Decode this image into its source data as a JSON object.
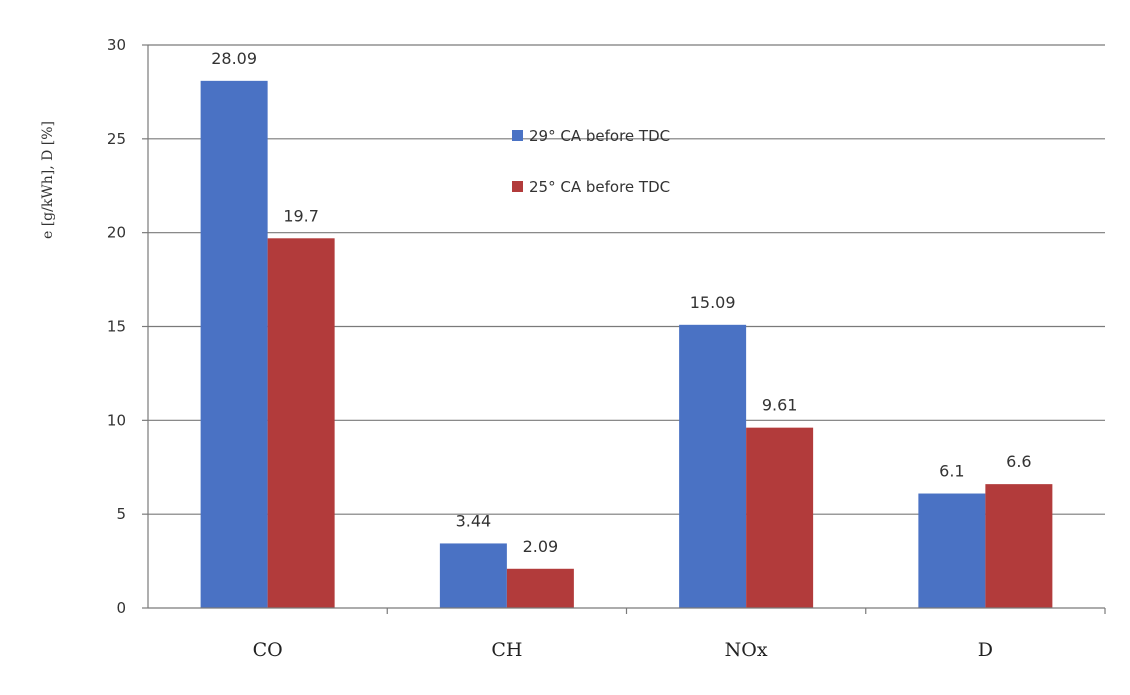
{
  "chart_data": {
    "type": "bar",
    "categories": [
      "CO",
      "CH",
      "NOx",
      "D"
    ],
    "series": [
      {
        "name": "29° CA before TDC",
        "values": [
          28.09,
          3.44,
          15.09,
          6.1
        ],
        "labels": [
          "28.09",
          "3.44",
          "15.09",
          "6.1"
        ],
        "color": "#4a72c4"
      },
      {
        "name": "25° CA before TDC",
        "values": [
          19.7,
          2.09,
          9.61,
          6.6
        ],
        "labels": [
          "19.7",
          "2.09",
          "9.61",
          "6.6"
        ],
        "color": "#b23b3b"
      }
    ],
    "ylabel": "e [g/kWh], D [%]",
    "ylim": [
      0,
      30
    ],
    "yticks": [
      0,
      5,
      10,
      15,
      20,
      25,
      30
    ],
    "grid": true,
    "legend_position": "top-center"
  }
}
